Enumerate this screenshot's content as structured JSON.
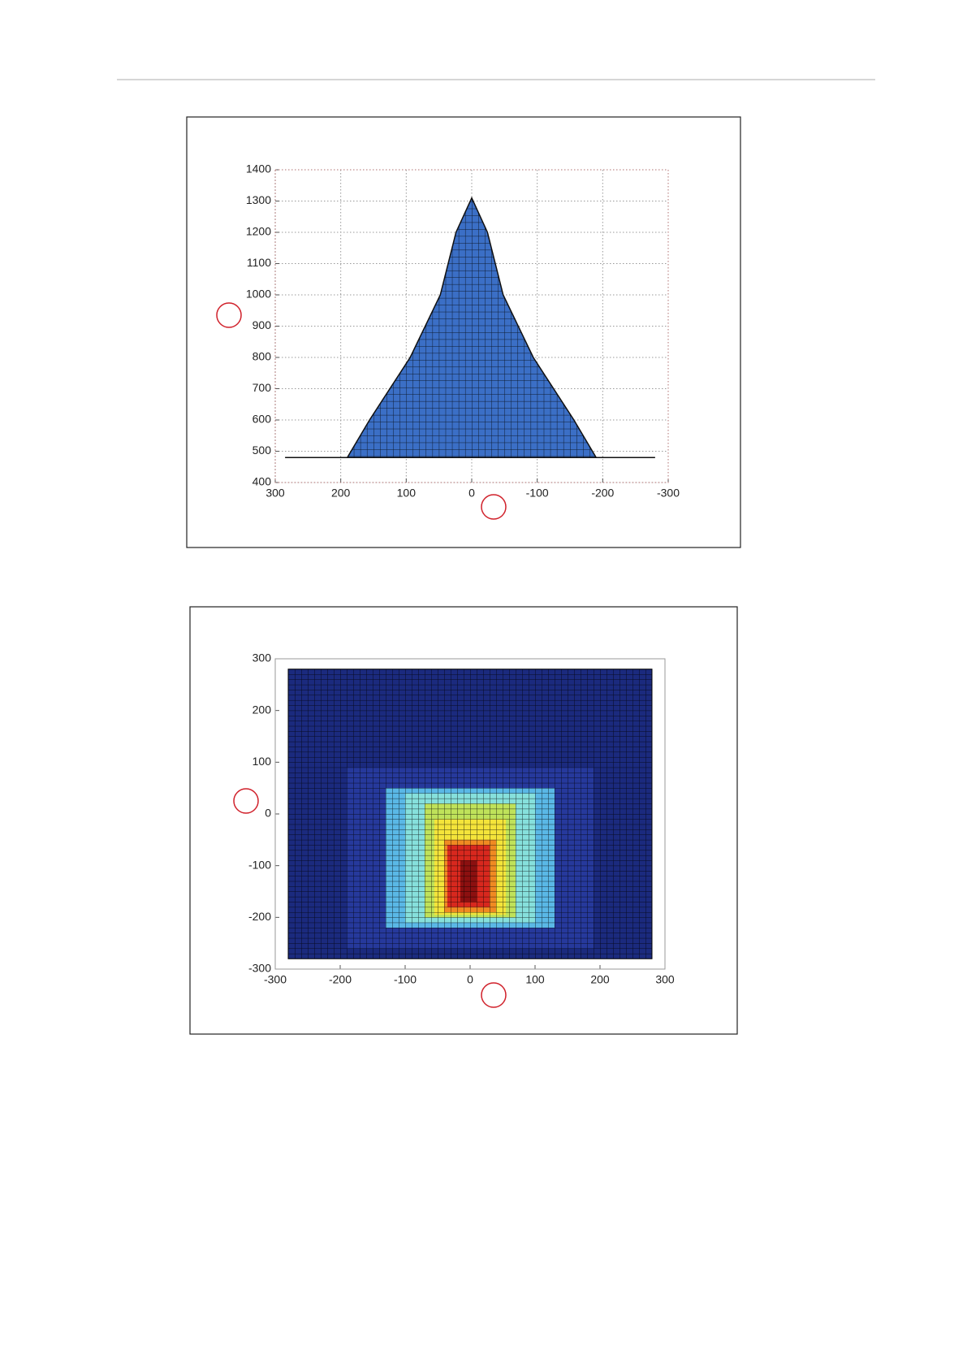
{
  "chart_data": [
    {
      "type": "area",
      "x": [
        285,
        190,
        156,
        94,
        48,
        24,
        0,
        -24,
        -48,
        -94,
        -156,
        -190,
        -280
      ],
      "values": [
        480,
        480,
        600,
        800,
        1000,
        1200,
        1310,
        1200,
        1000,
        800,
        600,
        480,
        480
      ],
      "color": "#3b6fc6",
      "mesh_step": [
        10,
        22
      ],
      "xlim": [
        300,
        -300
      ],
      "xticks": [
        300,
        200,
        100,
        0,
        -100,
        -200,
        -300
      ],
      "ylim": [
        400,
        1400
      ],
      "yticks": [
        400,
        500,
        600,
        700,
        800,
        900,
        1000,
        1100,
        1200,
        1300,
        1400
      ],
      "grid": true
    },
    {
      "type": "heatmap",
      "mesh_step": [
        10,
        10
      ],
      "regions": [
        {
          "x": [
            -280,
            280
          ],
          "y": [
            -280,
            280
          ],
          "color": "#1b2a7e"
        },
        {
          "x": [
            -190,
            190
          ],
          "y": [
            -260,
            90
          ],
          "color": "#26399c"
        },
        {
          "x": [
            -130,
            130
          ],
          "y": [
            -220,
            50
          ],
          "color": "#5ab8e6"
        },
        {
          "x": [
            -100,
            100
          ],
          "y": [
            -210,
            40
          ],
          "color": "#86e0dc"
        },
        {
          "x": [
            -70,
            70
          ],
          "y": [
            -200,
            20
          ],
          "color": "#bfe25a"
        },
        {
          "x": [
            -55,
            55
          ],
          "y": [
            -195,
            -10
          ],
          "color": "#f4e43a"
        },
        {
          "x": [
            -40,
            40
          ],
          "y": [
            -190,
            -50
          ],
          "color": "#f08a22"
        },
        {
          "x": [
            -35,
            30
          ],
          "y": [
            -180,
            -60
          ],
          "color": "#d8281e"
        },
        {
          "x": [
            -15,
            10
          ],
          "y": [
            -170,
            -90
          ],
          "color": "#8c1010"
        }
      ],
      "xlim": [
        -300,
        300
      ],
      "xticks": [
        -300,
        -200,
        -100,
        0,
        100,
        200,
        300
      ],
      "ylim": [
        -300,
        300
      ],
      "yticks": [
        -300,
        -200,
        -100,
        0,
        100,
        200,
        300
      ],
      "grid": false
    }
  ]
}
